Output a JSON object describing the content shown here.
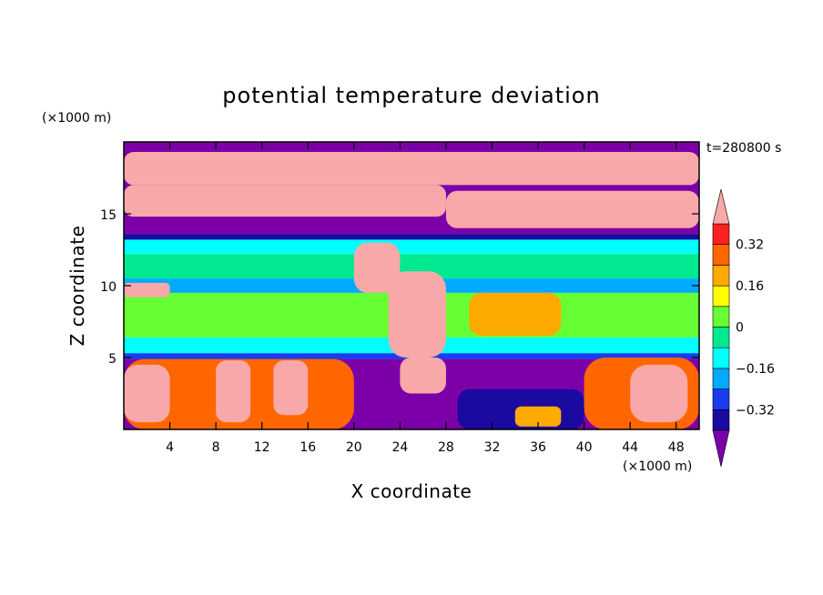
{
  "chart_data": {
    "type": "heatmap",
    "title": "potential temperature deviation",
    "xlabel": "X coordinate",
    "ylabel": "Z coordinate",
    "x_unit": "(×1000 m)",
    "y_unit": "(×1000 m)",
    "time_label": "t=280800 s",
    "xlim": [
      0,
      50
    ],
    "ylim": [
      0,
      20
    ],
    "x_ticks": [
      4,
      8,
      12,
      16,
      20,
      24,
      28,
      32,
      36,
      40,
      44,
      48
    ],
    "y_ticks": [
      5,
      10,
      15
    ],
    "colorbar": {
      "levels": [
        -0.4,
        -0.32,
        -0.24,
        -0.16,
        -0.08,
        0,
        0.08,
        0.16,
        0.24,
        0.32,
        0.4
      ],
      "tick_labels": [
        "0.32",
        "0.16",
        "0",
        "−0.16",
        "−0.32"
      ],
      "tick_values": [
        0.32,
        0.16,
        0,
        -0.16,
        -0.32
      ],
      "colors": [
        "#7b00a8",
        "#1a0aa0",
        "#1a3cf0",
        "#00aaff",
        "#00ffff",
        "#00e890",
        "#66ff33",
        "#ffff00",
        "#ffaa00",
        "#ff6600",
        "#ff2020",
        "#f8a8a8"
      ],
      "extend": "both"
    },
    "bands": [
      {
        "z": [
          13.6,
          20.0
        ],
        "value": -0.45,
        "note": "upper layer"
      },
      {
        "z": [
          13.2,
          13.6
        ],
        "value": -0.34
      },
      {
        "z": [
          12.2,
          13.2
        ],
        "value": -0.12
      },
      {
        "z": [
          10.5,
          12.2
        ],
        "value": -0.06
      },
      {
        "z": [
          9.5,
          10.5
        ],
        "value": -0.2
      },
      {
        "z": [
          6.4,
          9.5
        ],
        "value": 0.02
      },
      {
        "z": [
          5.3,
          6.4
        ],
        "value": -0.1
      },
      {
        "z": [
          4.9,
          5.3
        ],
        "value": -0.3
      },
      {
        "z": [
          0.0,
          4.9
        ],
        "value": -0.45,
        "note": "lower layer"
      }
    ],
    "patches": [
      {
        "x": [
          0,
          50
        ],
        "z": [
          17.0,
          19.3
        ],
        "value": 0.45
      },
      {
        "x": [
          0,
          28
        ],
        "z": [
          14.8,
          17.0
        ],
        "value": 0.45
      },
      {
        "x": [
          28,
          50
        ],
        "z": [
          14.0,
          16.6
        ],
        "value": 0.45
      },
      {
        "x": [
          20,
          24
        ],
        "z": [
          9.5,
          13.0
        ],
        "value": 0.45
      },
      {
        "x": [
          0,
          4
        ],
        "z": [
          9.2,
          10.2
        ],
        "value": 0.45
      },
      {
        "x": [
          23,
          28
        ],
        "z": [
          5.0,
          11.0
        ],
        "value": 0.45
      },
      {
        "x": [
          30,
          38
        ],
        "z": [
          6.5,
          9.5
        ],
        "value": 0.2
      },
      {
        "x": [
          0,
          20
        ],
        "z": [
          0.0,
          4.9
        ],
        "value": 0.3
      },
      {
        "x": [
          0,
          4
        ],
        "z": [
          0.5,
          4.5
        ],
        "value": 0.45
      },
      {
        "x": [
          8,
          11
        ],
        "z": [
          0.5,
          4.8
        ],
        "value": 0.45
      },
      {
        "x": [
          13,
          16
        ],
        "z": [
          1.0,
          4.8
        ],
        "value": 0.45
      },
      {
        "x": [
          24,
          28
        ],
        "z": [
          2.5,
          5.0
        ],
        "value": 0.45
      },
      {
        "x": [
          29,
          40
        ],
        "z": [
          0.0,
          2.8
        ],
        "value": -0.34
      },
      {
        "x": [
          40,
          50
        ],
        "z": [
          0.0,
          5.0
        ],
        "value": 0.3
      },
      {
        "x": [
          44,
          49
        ],
        "z": [
          0.5,
          4.5
        ],
        "value": 0.45
      },
      {
        "x": [
          34,
          38
        ],
        "z": [
          0.2,
          1.6
        ],
        "value": 0.2
      }
    ]
  }
}
